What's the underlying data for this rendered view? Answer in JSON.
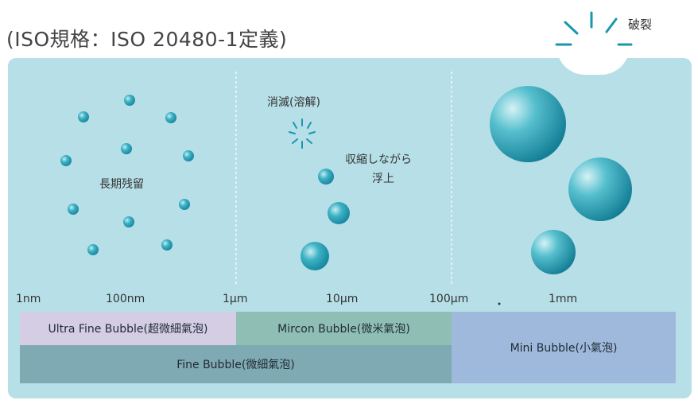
{
  "title": "(ISO規格：ISO 20480-1定義)",
  "burst_label": "破裂",
  "annotations": {
    "long_retention": "長期残留",
    "dissolve": "消滅(溶解)",
    "shrink_float_line1": "収縮しながら",
    "shrink_float_line2": "浮上"
  },
  "scale_ticks": [
    "1nm",
    "100nm",
    "1μm",
    "10μm",
    "100μm",
    "1mm"
  ],
  "categories": {
    "ultra_fine": "Ultra Fine Bubble(超微細氣泡)",
    "micron": "Mircon Bubble(微米氣泡)",
    "mini": "Mini Bubble(小氣泡)",
    "fine": "Fine Bubble(微細氣泡)"
  },
  "colors": {
    "panel": "#b7dfe7",
    "ultra_fine": "#d4cde3",
    "micron": "#8fbfb4",
    "mini": "#9fb9dc",
    "fine": "#7fa9b3",
    "bubble": "#2ba3b8"
  }
}
